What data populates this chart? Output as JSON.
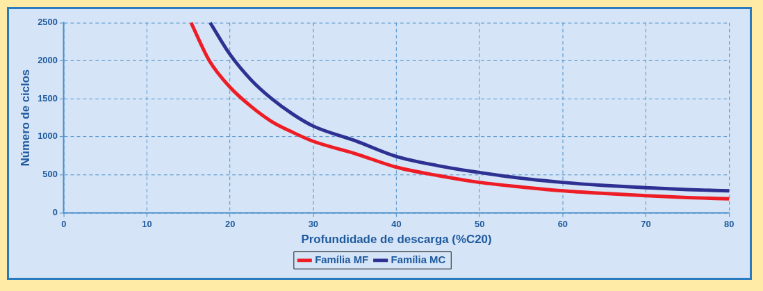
{
  "chart_data": {
    "type": "line",
    "xlabel": "Profundidade de descarga (%C20)",
    "ylabel": "Número de ciclos",
    "series": [
      {
        "name": "Família MF",
        "color": "#ee1c25",
        "x": [
          15.3,
          17.5,
          20,
          22.5,
          25,
          27.5,
          30,
          35,
          40,
          45,
          50,
          55,
          60,
          65,
          70,
          75,
          80
        ],
        "values": [
          2500,
          2000,
          1650,
          1400,
          1200,
          1060,
          940,
          780,
          600,
          490,
          400,
          340,
          290,
          255,
          225,
          200,
          185
        ]
      },
      {
        "name": "Família MC",
        "color": "#2e3192",
        "x": [
          17.6,
          20,
          22.5,
          25,
          27.5,
          30,
          35,
          40,
          45,
          50,
          55,
          60,
          65,
          70,
          75,
          80
        ],
        "values": [
          2500,
          2080,
          1750,
          1500,
          1300,
          1140,
          950,
          740,
          620,
          530,
          455,
          400,
          360,
          330,
          305,
          290
        ]
      }
    ],
    "xlim": [
      0,
      80
    ],
    "xticks": [
      0,
      10,
      20,
      30,
      40,
      50,
      60,
      70,
      80
    ],
    "ylim": [
      0,
      2500
    ],
    "yticks": [
      0,
      500,
      1000,
      1500,
      2000,
      2500
    ],
    "grid": true,
    "legend": "bottom",
    "marker": "none",
    "line_style": "solid"
  }
}
